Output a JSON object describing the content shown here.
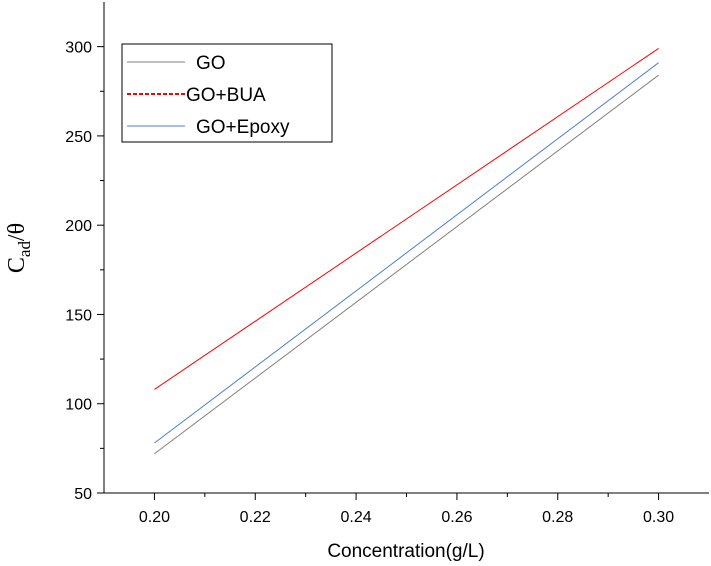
{
  "chart_data": {
    "type": "line",
    "xlabel": "Concentration(g/L)",
    "ylabel": {
      "main": "C",
      "sub": "ad",
      "suffix": "/θ"
    },
    "xlim": [
      0.19,
      0.31
    ],
    "ylim": [
      50,
      325
    ],
    "xticks": [
      "0.20",
      "0.22",
      "0.24",
      "0.26",
      "0.28",
      "0.30"
    ],
    "yticks": [
      "50",
      "100",
      "150",
      "200",
      "250",
      "300"
    ],
    "legend_position": "top-left",
    "grid": false,
    "series": [
      {
        "name": "GO",
        "color": "#808080",
        "dashed": false,
        "x": [
          0.2,
          0.3
        ],
        "y": [
          72,
          284
        ]
      },
      {
        "name": "GO+BUA",
        "color": "#ff0000",
        "dashed": true,
        "x": [
          0.2,
          0.3
        ],
        "y": [
          108,
          299
        ]
      },
      {
        "name": "GO+Epoxy",
        "color": "#4a7fd4",
        "dashed": false,
        "x": [
          0.2,
          0.3
        ],
        "y": [
          78,
          291
        ]
      }
    ]
  }
}
